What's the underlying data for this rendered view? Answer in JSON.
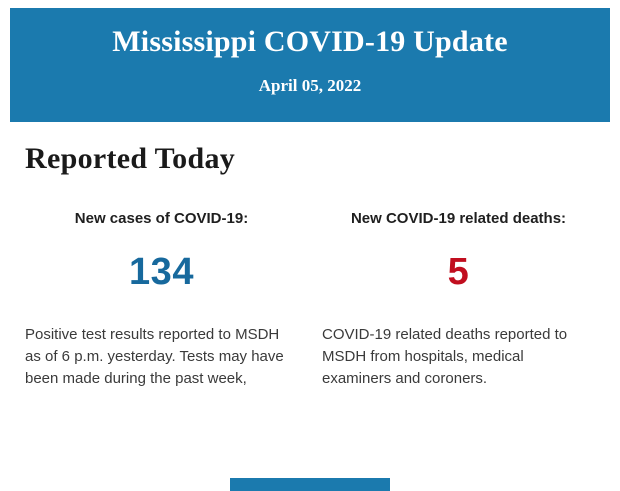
{
  "header": {
    "title": "Mississippi COVID-19 Update",
    "date": "April 05, 2022"
  },
  "section": {
    "title": "Reported Today"
  },
  "stats": [
    {
      "label": "New cases of COVID-19:",
      "value": "134",
      "description": "Positive test results reported to MSDH as of 6 p.m. yesterday. Tests may have been made during the past week,"
    },
    {
      "label": "New COVID-19 related deaths:",
      "value": "5",
      "description": "COVID-19 related deaths reported to MSDH from hospitals, medical examiners and coroners."
    }
  ],
  "colors": {
    "header-blue": "#1b7aae",
    "cases-blue": "#17699d",
    "deaths-red": "#c10e1f",
    "heading-black": "#1a1a1a",
    "body-text": "#3a3a3a"
  }
}
